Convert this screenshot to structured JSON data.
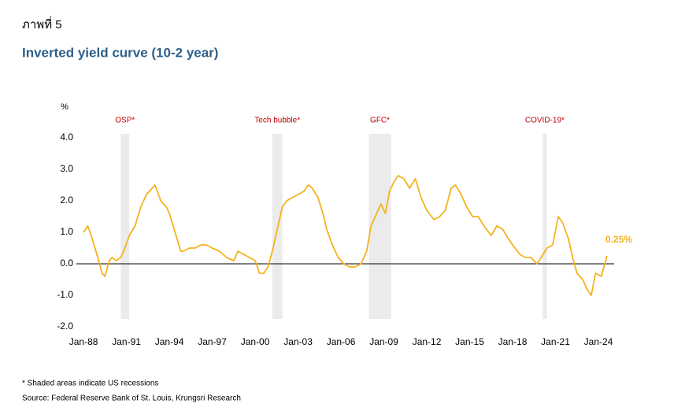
{
  "header": "ภาพที่ 5",
  "chart_data": {
    "type": "line",
    "title": "Inverted yield curve (10-2 year)",
    "y_label": "%",
    "xlim": [
      1987.5,
      2025.1
    ],
    "xticks": [
      {
        "value": 1988,
        "label": "Jan-88"
      },
      {
        "value": 1991,
        "label": "Jan-91"
      },
      {
        "value": 1994,
        "label": "Jan-94"
      },
      {
        "value": 1997,
        "label": "Jan-97"
      },
      {
        "value": 2000,
        "label": "Jan-00"
      },
      {
        "value": 2003,
        "label": "Jan-03"
      },
      {
        "value": 2006,
        "label": "Jan-06"
      },
      {
        "value": 2009,
        "label": "Jan-09"
      },
      {
        "value": 2012,
        "label": "Jan-12"
      },
      {
        "value": 2015,
        "label": "Jan-15"
      },
      {
        "value": 2018,
        "label": "Jan-18"
      },
      {
        "value": 2021,
        "label": "Jan-21"
      },
      {
        "value": 2024,
        "label": "Jan-24"
      }
    ],
    "ylim": [
      -2,
      4
    ],
    "yticks": [
      {
        "value": 4,
        "label": "4.0"
      },
      {
        "value": 3,
        "label": "3.0"
      },
      {
        "value": 2,
        "label": "2.0"
      },
      {
        "value": 1,
        "label": "1.0"
      },
      {
        "value": 0,
        "label": "0.0"
      },
      {
        "value": -1,
        "label": "-1.0"
      },
      {
        "value": -2,
        "label": "-2.0"
      }
    ],
    "recessions": [
      {
        "label": "OSP*",
        "start": 1990.6,
        "end": 1991.2
      },
      {
        "label": "Tech bubble*",
        "start": 2001.2,
        "end": 2001.9
      },
      {
        "label": "GFC*",
        "start": 2007.95,
        "end": 2009.5
      },
      {
        "label": "COVID-19*",
        "start": 2020.1,
        "end": 2020.4
      }
    ],
    "series": [
      {
        "color": "#f5b21e",
        "x": [
          1988.0,
          1988.3,
          1988.6,
          1989.0,
          1989.3,
          1989.5,
          1989.8,
          1990.0,
          1990.3,
          1990.6,
          1990.9,
          1991.2,
          1991.6,
          1992.0,
          1992.4,
          1992.8,
          1993.0,
          1993.4,
          1993.8,
          1994.0,
          1994.4,
          1994.8,
          1995.0,
          1995.4,
          1995.8,
          1996.2,
          1996.6,
          1997.0,
          1997.5,
          1998.0,
          1998.5,
          1998.8,
          1999.2,
          1999.6,
          2000.0,
          2000.3,
          2000.6,
          2000.9,
          2001.2,
          2001.5,
          2001.9,
          2002.2,
          2002.6,
          2003.0,
          2003.4,
          2003.7,
          2004.0,
          2004.4,
          2004.8,
          2005.0,
          2005.4,
          2005.8,
          2006.2,
          2006.6,
          2007.0,
          2007.4,
          2007.8,
          2008.1,
          2008.4,
          2008.8,
          2009.1,
          2009.4,
          2009.7,
          2010.0,
          2010.4,
          2010.8,
          2011.2,
          2011.6,
          2012.0,
          2012.5,
          2012.9,
          2013.3,
          2013.7,
          2014.0,
          2014.4,
          2014.8,
          2015.2,
          2015.6,
          2016.0,
          2016.5,
          2016.9,
          2017.3,
          2017.7,
          2018.0,
          2018.5,
          2018.9,
          2019.3,
          2019.7,
          2020.0,
          2020.4,
          2020.8,
          2021.2,
          2021.5,
          2021.9,
          2022.2,
          2022.5,
          2022.9,
          2023.2,
          2023.5,
          2023.8,
          2024.2,
          2024.6
        ],
        "values": [
          1.0,
          1.2,
          0.8,
          0.2,
          -0.3,
          -0.4,
          0.1,
          0.2,
          0.1,
          0.2,
          0.5,
          0.9,
          1.2,
          1.8,
          2.2,
          2.4,
          2.5,
          2.0,
          1.8,
          1.6,
          1.0,
          0.4,
          0.4,
          0.5,
          0.5,
          0.6,
          0.6,
          0.5,
          0.4,
          0.2,
          0.1,
          0.4,
          0.3,
          0.2,
          0.1,
          -0.3,
          -0.3,
          -0.1,
          0.4,
          1.0,
          1.8,
          2.0,
          2.1,
          2.2,
          2.3,
          2.5,
          2.4,
          2.1,
          1.5,
          1.1,
          0.6,
          0.2,
          0.0,
          -0.1,
          -0.1,
          0.0,
          0.4,
          1.2,
          1.5,
          1.9,
          1.6,
          2.3,
          2.6,
          2.8,
          2.7,
          2.4,
          2.7,
          2.1,
          1.7,
          1.4,
          1.5,
          1.7,
          2.4,
          2.5,
          2.2,
          1.8,
          1.5,
          1.5,
          1.2,
          0.9,
          1.2,
          1.1,
          0.8,
          0.6,
          0.3,
          0.2,
          0.2,
          0.0,
          0.2,
          0.5,
          0.6,
          1.5,
          1.3,
          0.8,
          0.2,
          -0.3,
          -0.5,
          -0.8,
          -1.0,
          -0.3,
          -0.4,
          0.25
        ],
        "value_labels": [
          null,
          null,
          null,
          null,
          null,
          null,
          null,
          null,
          null,
          null,
          null,
          null,
          null,
          null,
          null,
          null,
          null,
          null,
          null,
          null,
          null,
          null,
          null,
          null,
          null,
          null,
          null,
          null,
          null,
          null,
          null,
          null,
          null,
          null,
          null,
          null,
          null,
          null,
          null,
          null,
          null,
          null,
          null,
          null,
          null,
          null,
          null,
          null,
          null,
          null,
          null,
          null,
          null,
          null,
          null,
          null,
          null,
          null,
          null,
          null,
          null,
          null,
          null,
          null,
          null,
          null,
          null,
          null,
          null,
          null,
          null,
          null,
          null,
          null,
          null,
          null,
          null,
          null,
          null,
          null,
          null,
          null,
          null,
          null,
          null,
          null,
          null,
          null,
          null,
          null,
          null,
          null,
          null,
          null,
          null,
          null,
          null,
          null,
          null,
          null,
          null,
          "0.25%"
        ]
      }
    ],
    "footnotes": [
      "* Shaded areas indicate US recessions",
      "Source: Federal Reserve Bank of St. Louis, Krungsri Research"
    ]
  }
}
